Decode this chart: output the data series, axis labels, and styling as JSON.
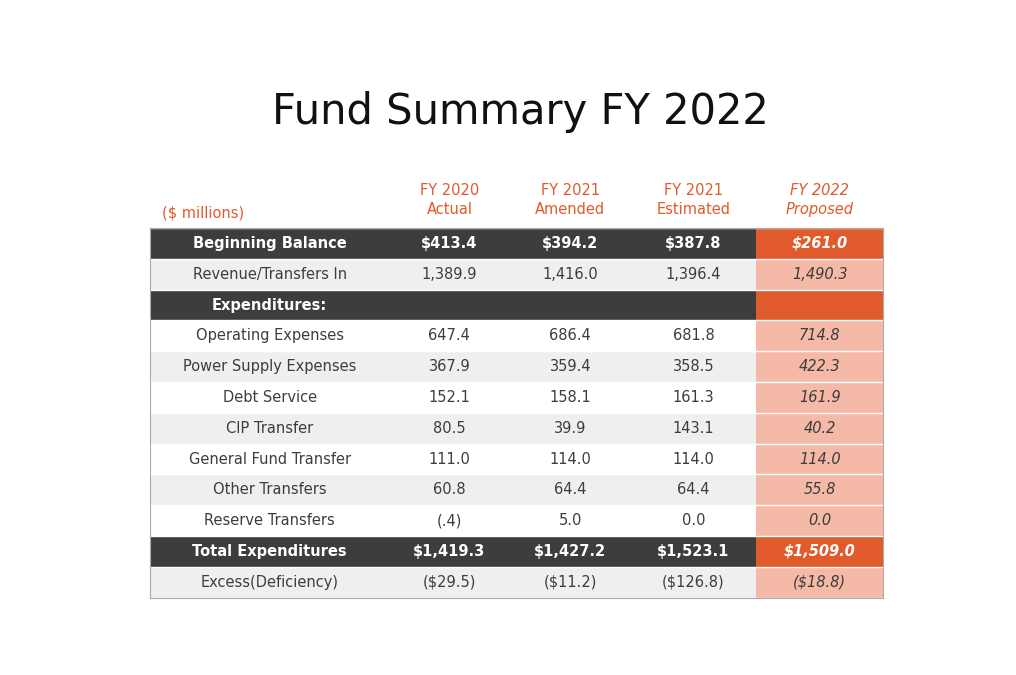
{
  "title": "Fund Summary FY 2022",
  "col_headers_line1": [
    "FY 2020",
    "FY 2021",
    "FY 2021",
    "FY 2022"
  ],
  "col_headers_line2": [
    "Actual",
    "Amended",
    "Estimated",
    "Proposed"
  ],
  "col_headers_italic": [
    false,
    false,
    false,
    true
  ],
  "row_label_header": "($ millions)",
  "rows": [
    {
      "label": "Beginning Balance",
      "dark": true,
      "values": [
        "$413.4",
        "$394.2",
        "$387.8",
        "$261.0"
      ]
    },
    {
      "label": "Revenue/Transfers In",
      "dark": false,
      "values": [
        "1,389.9",
        "1,416.0",
        "1,396.4",
        "1,490.3"
      ]
    },
    {
      "label": "Expenditures:",
      "dark": true,
      "values": [
        "",
        "",
        "",
        ""
      ]
    },
    {
      "label": "Operating Expenses",
      "dark": false,
      "values": [
        "647.4",
        "686.4",
        "681.8",
        "714.8"
      ]
    },
    {
      "label": "Power Supply Expenses",
      "dark": false,
      "values": [
        "367.9",
        "359.4",
        "358.5",
        "422.3"
      ]
    },
    {
      "label": "Debt Service",
      "dark": false,
      "values": [
        "152.1",
        "158.1",
        "161.3",
        "161.9"
      ]
    },
    {
      "label": "CIP Transfer",
      "dark": false,
      "values": [
        "80.5",
        "39.9",
        "143.1",
        "40.2"
      ]
    },
    {
      "label": "General Fund Transfer",
      "dark": false,
      "values": [
        "111.0",
        "114.0",
        "114.0",
        "114.0"
      ]
    },
    {
      "label": "Other Transfers",
      "dark": false,
      "values": [
        "60.8",
        "64.4",
        "64.4",
        "55.8"
      ]
    },
    {
      "label": "Reserve Transfers",
      "dark": false,
      "values": [
        "(.4)",
        "5.0",
        "0.0",
        "0.0"
      ]
    },
    {
      "label": "Total Expenditures",
      "dark": true,
      "values": [
        "$1,419.3",
        "$1,427.2",
        "$1,523.1",
        "$1,509.0"
      ]
    },
    {
      "label": "Excess(Deficiency)",
      "dark": false,
      "values": [
        "($29.5)",
        "($11.2)",
        "($126.8)",
        "($18.8)"
      ]
    }
  ],
  "color_dark_bg": "#3d3d3d",
  "color_dark_text": "#ffffff",
  "color_header_text": "#e05a2b",
  "color_orange_strong": "#e05a2b",
  "color_orange_light": "#f4b9a7",
  "color_row_light": "#efefef",
  "color_row_white": "#ffffff",
  "color_label_text": "#3d3d3d",
  "bg_color": "#ffffff",
  "title_color": "#111111"
}
